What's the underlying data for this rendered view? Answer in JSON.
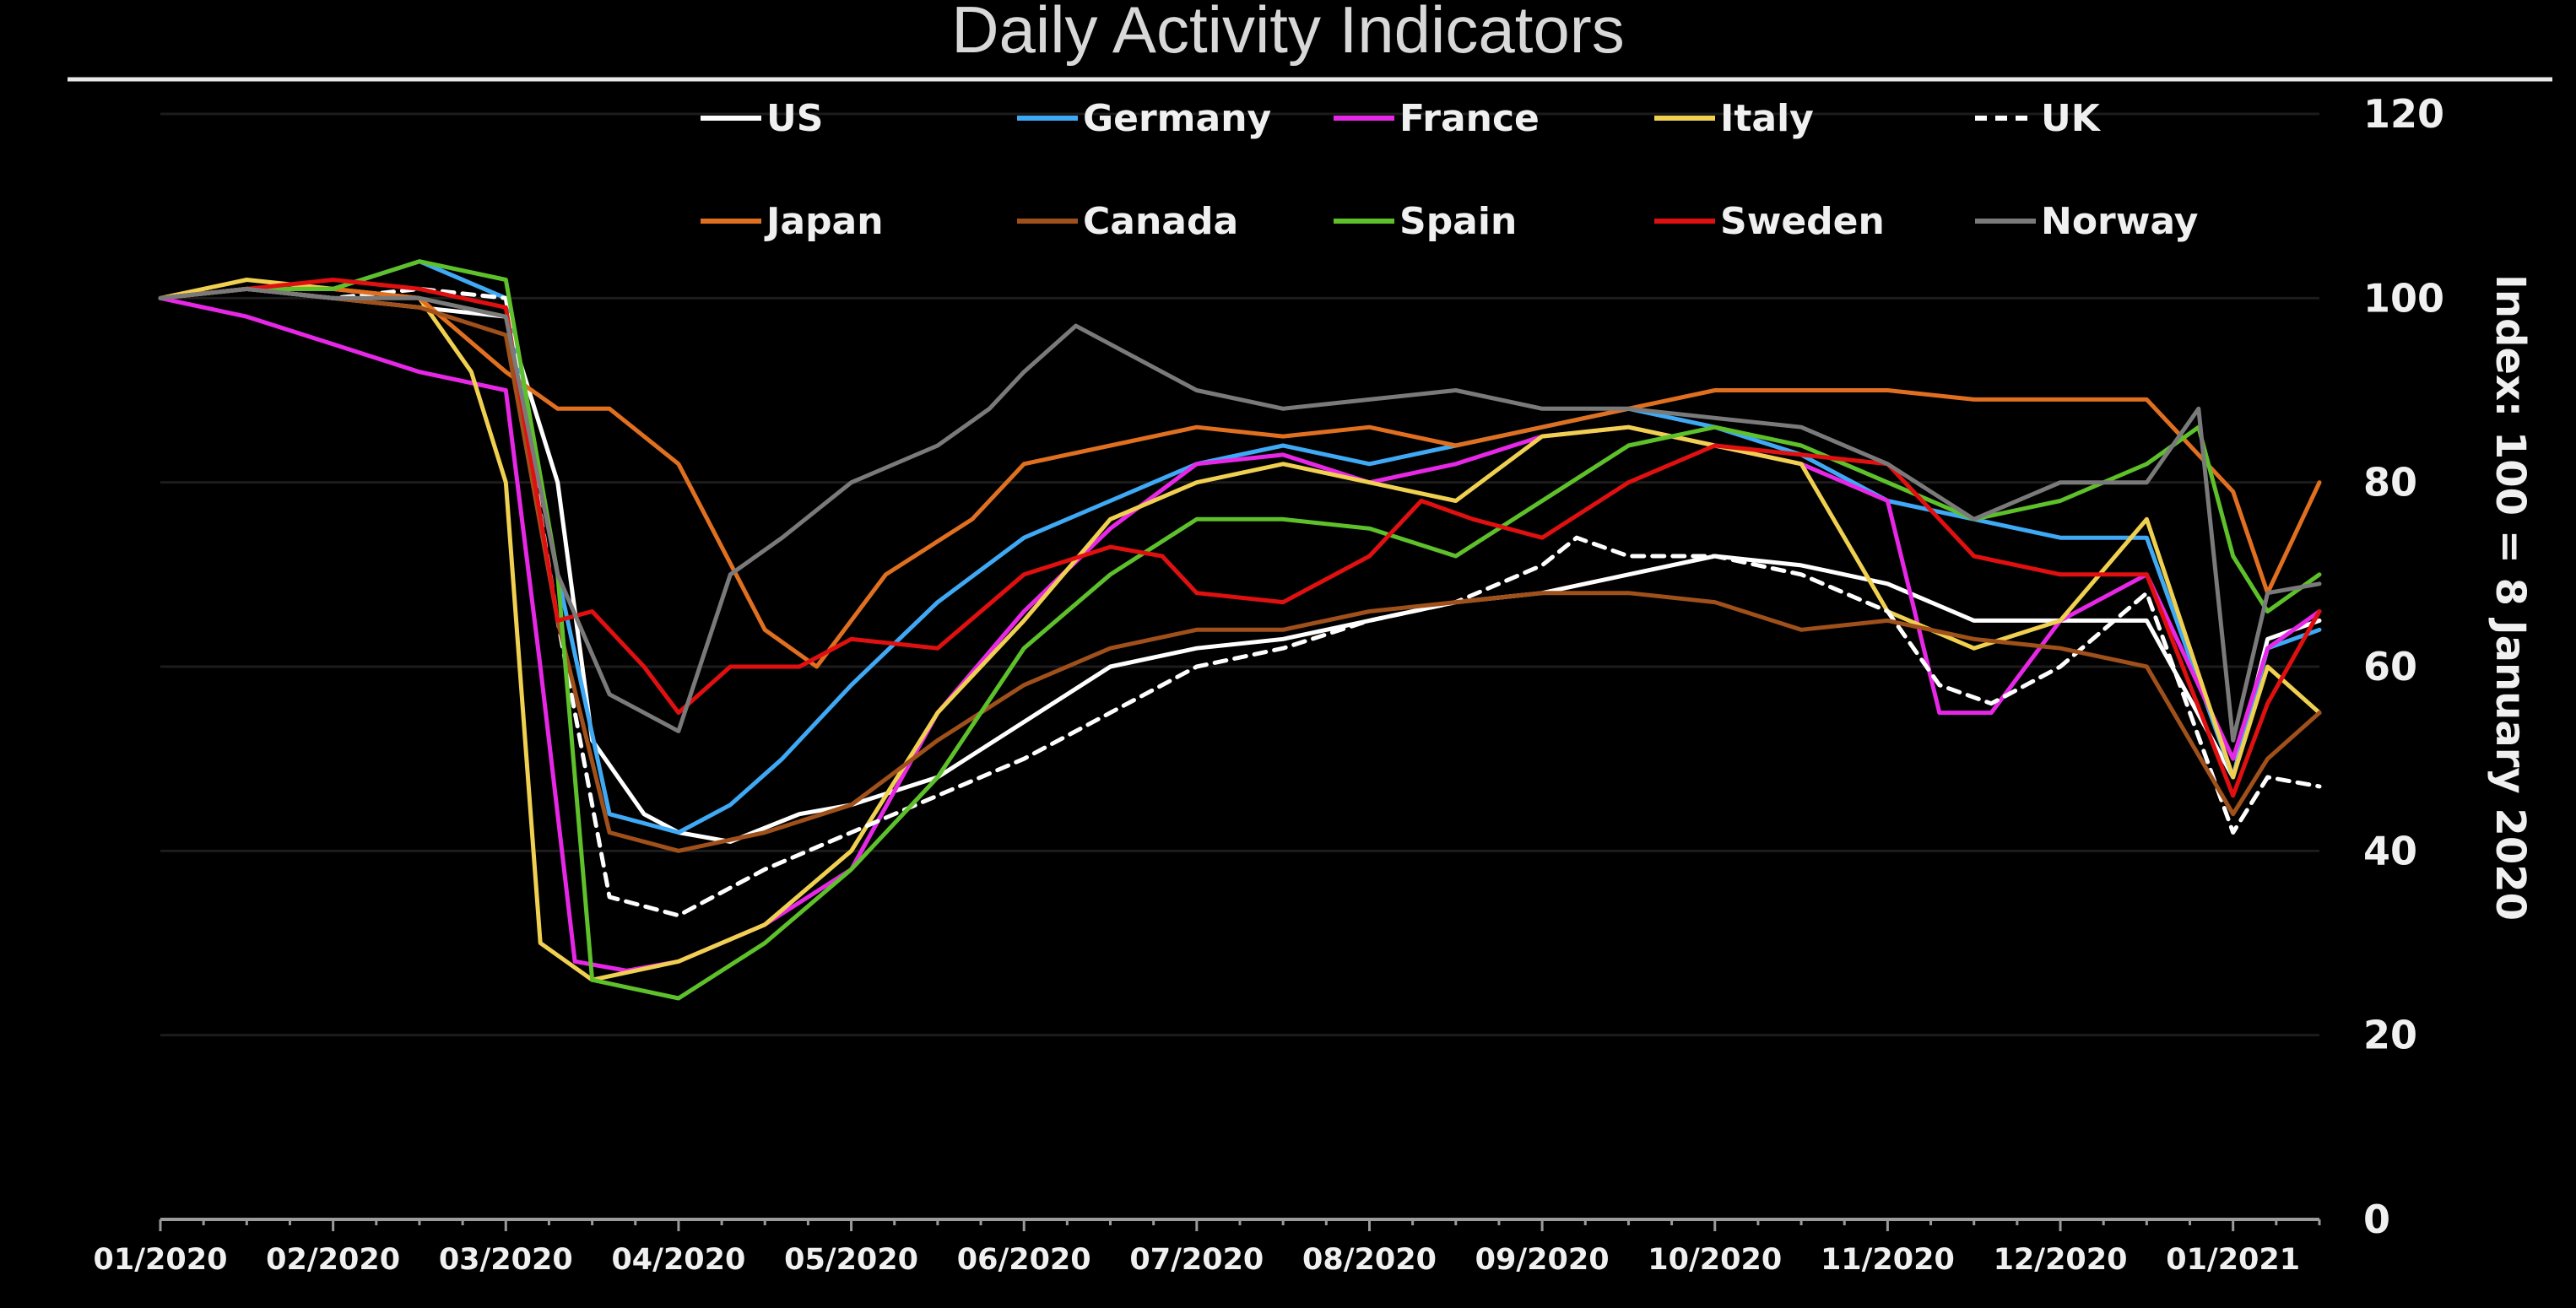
{
  "chart_data": {
    "type": "line",
    "title": "Daily Activity Indicators",
    "ylabel": "Index: 100 = 8 January 2020",
    "ylim": [
      0,
      120
    ],
    "yticks": [
      0,
      20,
      40,
      60,
      80,
      100,
      120
    ],
    "y_axis_side": "right",
    "xlim": [
      0,
      12.5
    ],
    "xticks": [
      {
        "x": 0,
        "label": "01/2020"
      },
      {
        "x": 1,
        "label": "02/2020"
      },
      {
        "x": 2,
        "label": "03/2020"
      },
      {
        "x": 3,
        "label": "04/2020"
      },
      {
        "x": 4,
        "label": "05/2020"
      },
      {
        "x": 5,
        "label": "06/2020"
      },
      {
        "x": 6,
        "label": "07/2020"
      },
      {
        "x": 7,
        "label": "08/2020"
      },
      {
        "x": 8,
        "label": "09/2020"
      },
      {
        "x": 9,
        "label": "10/2020"
      },
      {
        "x": 10,
        "label": "11/2020"
      },
      {
        "x": 11,
        "label": "12/2020"
      },
      {
        "x": 12,
        "label": "01/2021"
      }
    ],
    "grid": "horizontal",
    "legend_position": "top",
    "series": [
      {
        "name": "US",
        "color": "#ffffff",
        "dash": "solid",
        "x": [
          0,
          0.5,
          1,
          1.5,
          2,
          2.3,
          2.5,
          2.8,
          3,
          3.3,
          3.7,
          4,
          4.5,
          5,
          5.5,
          6,
          6.5,
          7,
          7.5,
          8,
          8.5,
          9,
          9.5,
          10,
          10.5,
          11,
          11.5,
          12,
          12.2,
          12.5
        ],
        "y": [
          100,
          101,
          100,
          99,
          98,
          80,
          52,
          44,
          42,
          41,
          44,
          45,
          48,
          54,
          60,
          62,
          63,
          65,
          67,
          68,
          70,
          72,
          71,
          69,
          65,
          65,
          65,
          48,
          63,
          65
        ]
      },
      {
        "name": "Germany",
        "color": "#3fa9f5",
        "dash": "solid",
        "x": [
          0,
          0.5,
          1,
          1.5,
          2,
          2.3,
          2.6,
          3,
          3.3,
          3.6,
          4,
          4.5,
          5,
          5.5,
          6,
          6.5,
          7,
          7.5,
          8,
          8.5,
          9,
          9.5,
          10,
          10.5,
          11,
          11.5,
          12,
          12.2,
          12.5
        ],
        "y": [
          100,
          101,
          101,
          104,
          100,
          70,
          44,
          42,
          45,
          50,
          58,
          67,
          74,
          78,
          82,
          84,
          82,
          84,
          86,
          88,
          86,
          83,
          78,
          76,
          74,
          74,
          48,
          62,
          64
        ]
      },
      {
        "name": "France",
        "color": "#e628e6",
        "dash": "solid",
        "x": [
          0,
          0.5,
          1,
          1.5,
          2,
          2.2,
          2.4,
          2.7,
          3,
          3.5,
          4,
          4.5,
          5,
          5.5,
          6,
          6.5,
          7,
          7.5,
          8,
          8.5,
          9,
          9.5,
          10,
          10.3,
          10.6,
          11,
          11.5,
          12,
          12.2,
          12.5
        ],
        "y": [
          100,
          98,
          95,
          92,
          90,
          60,
          28,
          27,
          28,
          32,
          38,
          55,
          66,
          75,
          82,
          83,
          80,
          82,
          85,
          86,
          84,
          82,
          78,
          55,
          55,
          65,
          70,
          50,
          62,
          66
        ]
      },
      {
        "name": "Italy",
        "color": "#f0d050",
        "dash": "solid",
        "x": [
          0,
          0.5,
          1,
          1.5,
          1.8,
          2,
          2.2,
          2.5,
          3,
          3.5,
          4,
          4.5,
          5,
          5.5,
          6,
          6.5,
          7,
          7.5,
          8,
          8.5,
          9,
          9.5,
          10,
          10.5,
          11,
          11.5,
          12,
          12.2,
          12.5
        ],
        "y": [
          100,
          102,
          101,
          100,
          92,
          80,
          30,
          26,
          28,
          32,
          40,
          55,
          65,
          76,
          80,
          82,
          80,
          78,
          85,
          86,
          84,
          82,
          66,
          62,
          65,
          76,
          48,
          60,
          55
        ]
      },
      {
        "name": "UK",
        "color": "#ffffff",
        "dash": "dashed",
        "x": [
          0,
          0.5,
          1,
          1.5,
          2,
          2.3,
          2.6,
          3,
          3.5,
          4,
          4.5,
          5,
          5.5,
          6,
          6.5,
          7,
          7.5,
          8,
          8.2,
          8.5,
          9,
          9.5,
          10,
          10.3,
          10.6,
          11,
          11.5,
          12,
          12.2,
          12.5
        ],
        "y": [
          100,
          101,
          100,
          101,
          100,
          65,
          35,
          33,
          38,
          42,
          46,
          50,
          55,
          60,
          62,
          65,
          67,
          71,
          74,
          72,
          72,
          70,
          66,
          58,
          56,
          60,
          68,
          42,
          48,
          47
        ]
      },
      {
        "name": "Japan",
        "color": "#e07020",
        "dash": "solid",
        "x": [
          0,
          0.5,
          1,
          1.5,
          2,
          2.3,
          2.6,
          3,
          3.5,
          3.8,
          4.2,
          4.7,
          5,
          5.5,
          6,
          6.5,
          7,
          7.5,
          8,
          8.5,
          9,
          9.5,
          10,
          10.5,
          11,
          11.5,
          12,
          12.2,
          12.5
        ],
        "y": [
          100,
          101,
          101,
          100,
          92,
          88,
          88,
          82,
          64,
          60,
          70,
          76,
          82,
          84,
          86,
          85,
          86,
          84,
          86,
          88,
          90,
          90,
          90,
          89,
          89,
          89,
          79,
          68,
          80
        ]
      },
      {
        "name": "Canada",
        "color": "#a0501a",
        "dash": "solid",
        "x": [
          0,
          0.5,
          1,
          1.5,
          2,
          2.3,
          2.6,
          3,
          3.5,
          4,
          4.5,
          5,
          5.5,
          6,
          6.5,
          7,
          7.5,
          8,
          8.5,
          9,
          9.5,
          10,
          10.5,
          11,
          11.5,
          12,
          12.2,
          12.5
        ],
        "y": [
          100,
          101,
          100,
          99,
          96,
          65,
          42,
          40,
          42,
          45,
          52,
          58,
          62,
          64,
          64,
          66,
          67,
          68,
          68,
          67,
          64,
          65,
          63,
          62,
          60,
          44,
          50,
          55
        ]
      },
      {
        "name": "Spain",
        "color": "#5ec02a",
        "dash": "solid",
        "x": [
          0,
          0.5,
          1,
          1.5,
          2,
          2.3,
          2.5,
          3,
          3.5,
          4,
          4.5,
          5,
          5.5,
          6,
          6.5,
          7,
          7.5,
          8,
          8.5,
          9,
          9.5,
          10,
          10.5,
          11,
          11.5,
          11.8,
          12,
          12.2,
          12.5
        ],
        "y": [
          100,
          101,
          101,
          104,
          102,
          70,
          26,
          24,
          30,
          38,
          48,
          62,
          70,
          76,
          76,
          75,
          72,
          78,
          84,
          86,
          84,
          80,
          76,
          78,
          82,
          86,
          72,
          66,
          70
        ]
      },
      {
        "name": "Sweden",
        "color": "#e01010",
        "dash": "solid",
        "x": [
          0,
          0.5,
          1,
          1.5,
          2,
          2.3,
          2.5,
          2.8,
          3,
          3.3,
          3.7,
          4,
          4.5,
          5,
          5.5,
          5.8,
          6,
          6.5,
          7,
          7.3,
          7.6,
          8,
          8.5,
          9,
          9.5,
          10,
          10.5,
          11,
          11.5,
          12,
          12.2,
          12.5
        ],
        "y": [
          100,
          101,
          102,
          101,
          99,
          65,
          66,
          60,
          55,
          60,
          60,
          63,
          62,
          70,
          73,
          72,
          68,
          67,
          72,
          78,
          76,
          74,
          80,
          84,
          83,
          82,
          72,
          70,
          70,
          46,
          56,
          66
        ]
      },
      {
        "name": "Norway",
        "color": "#7a7a7a",
        "dash": "solid",
        "x": [
          0,
          0.5,
          1,
          1.5,
          2,
          2.3,
          2.6,
          3,
          3.3,
          3.6,
          4,
          4.5,
          4.8,
          5,
          5.3,
          5.8,
          6,
          6.5,
          7,
          7.5,
          8,
          8.5,
          9,
          9.5,
          10,
          10.5,
          11,
          11.5,
          11.8,
          12,
          12.2,
          12.5
        ],
        "y": [
          100,
          101,
          100,
          100,
          98,
          70,
          57,
          53,
          70,
          74,
          80,
          84,
          88,
          92,
          97,
          92,
          90,
          88,
          89,
          90,
          88,
          88,
          87,
          86,
          82,
          76,
          80,
          80,
          88,
          52,
          68,
          69
        ]
      }
    ]
  },
  "colors": {
    "background": "#000000",
    "text": "#f0f0f0",
    "grid": "#1c1c1c",
    "axis": "#9a9a9a"
  }
}
